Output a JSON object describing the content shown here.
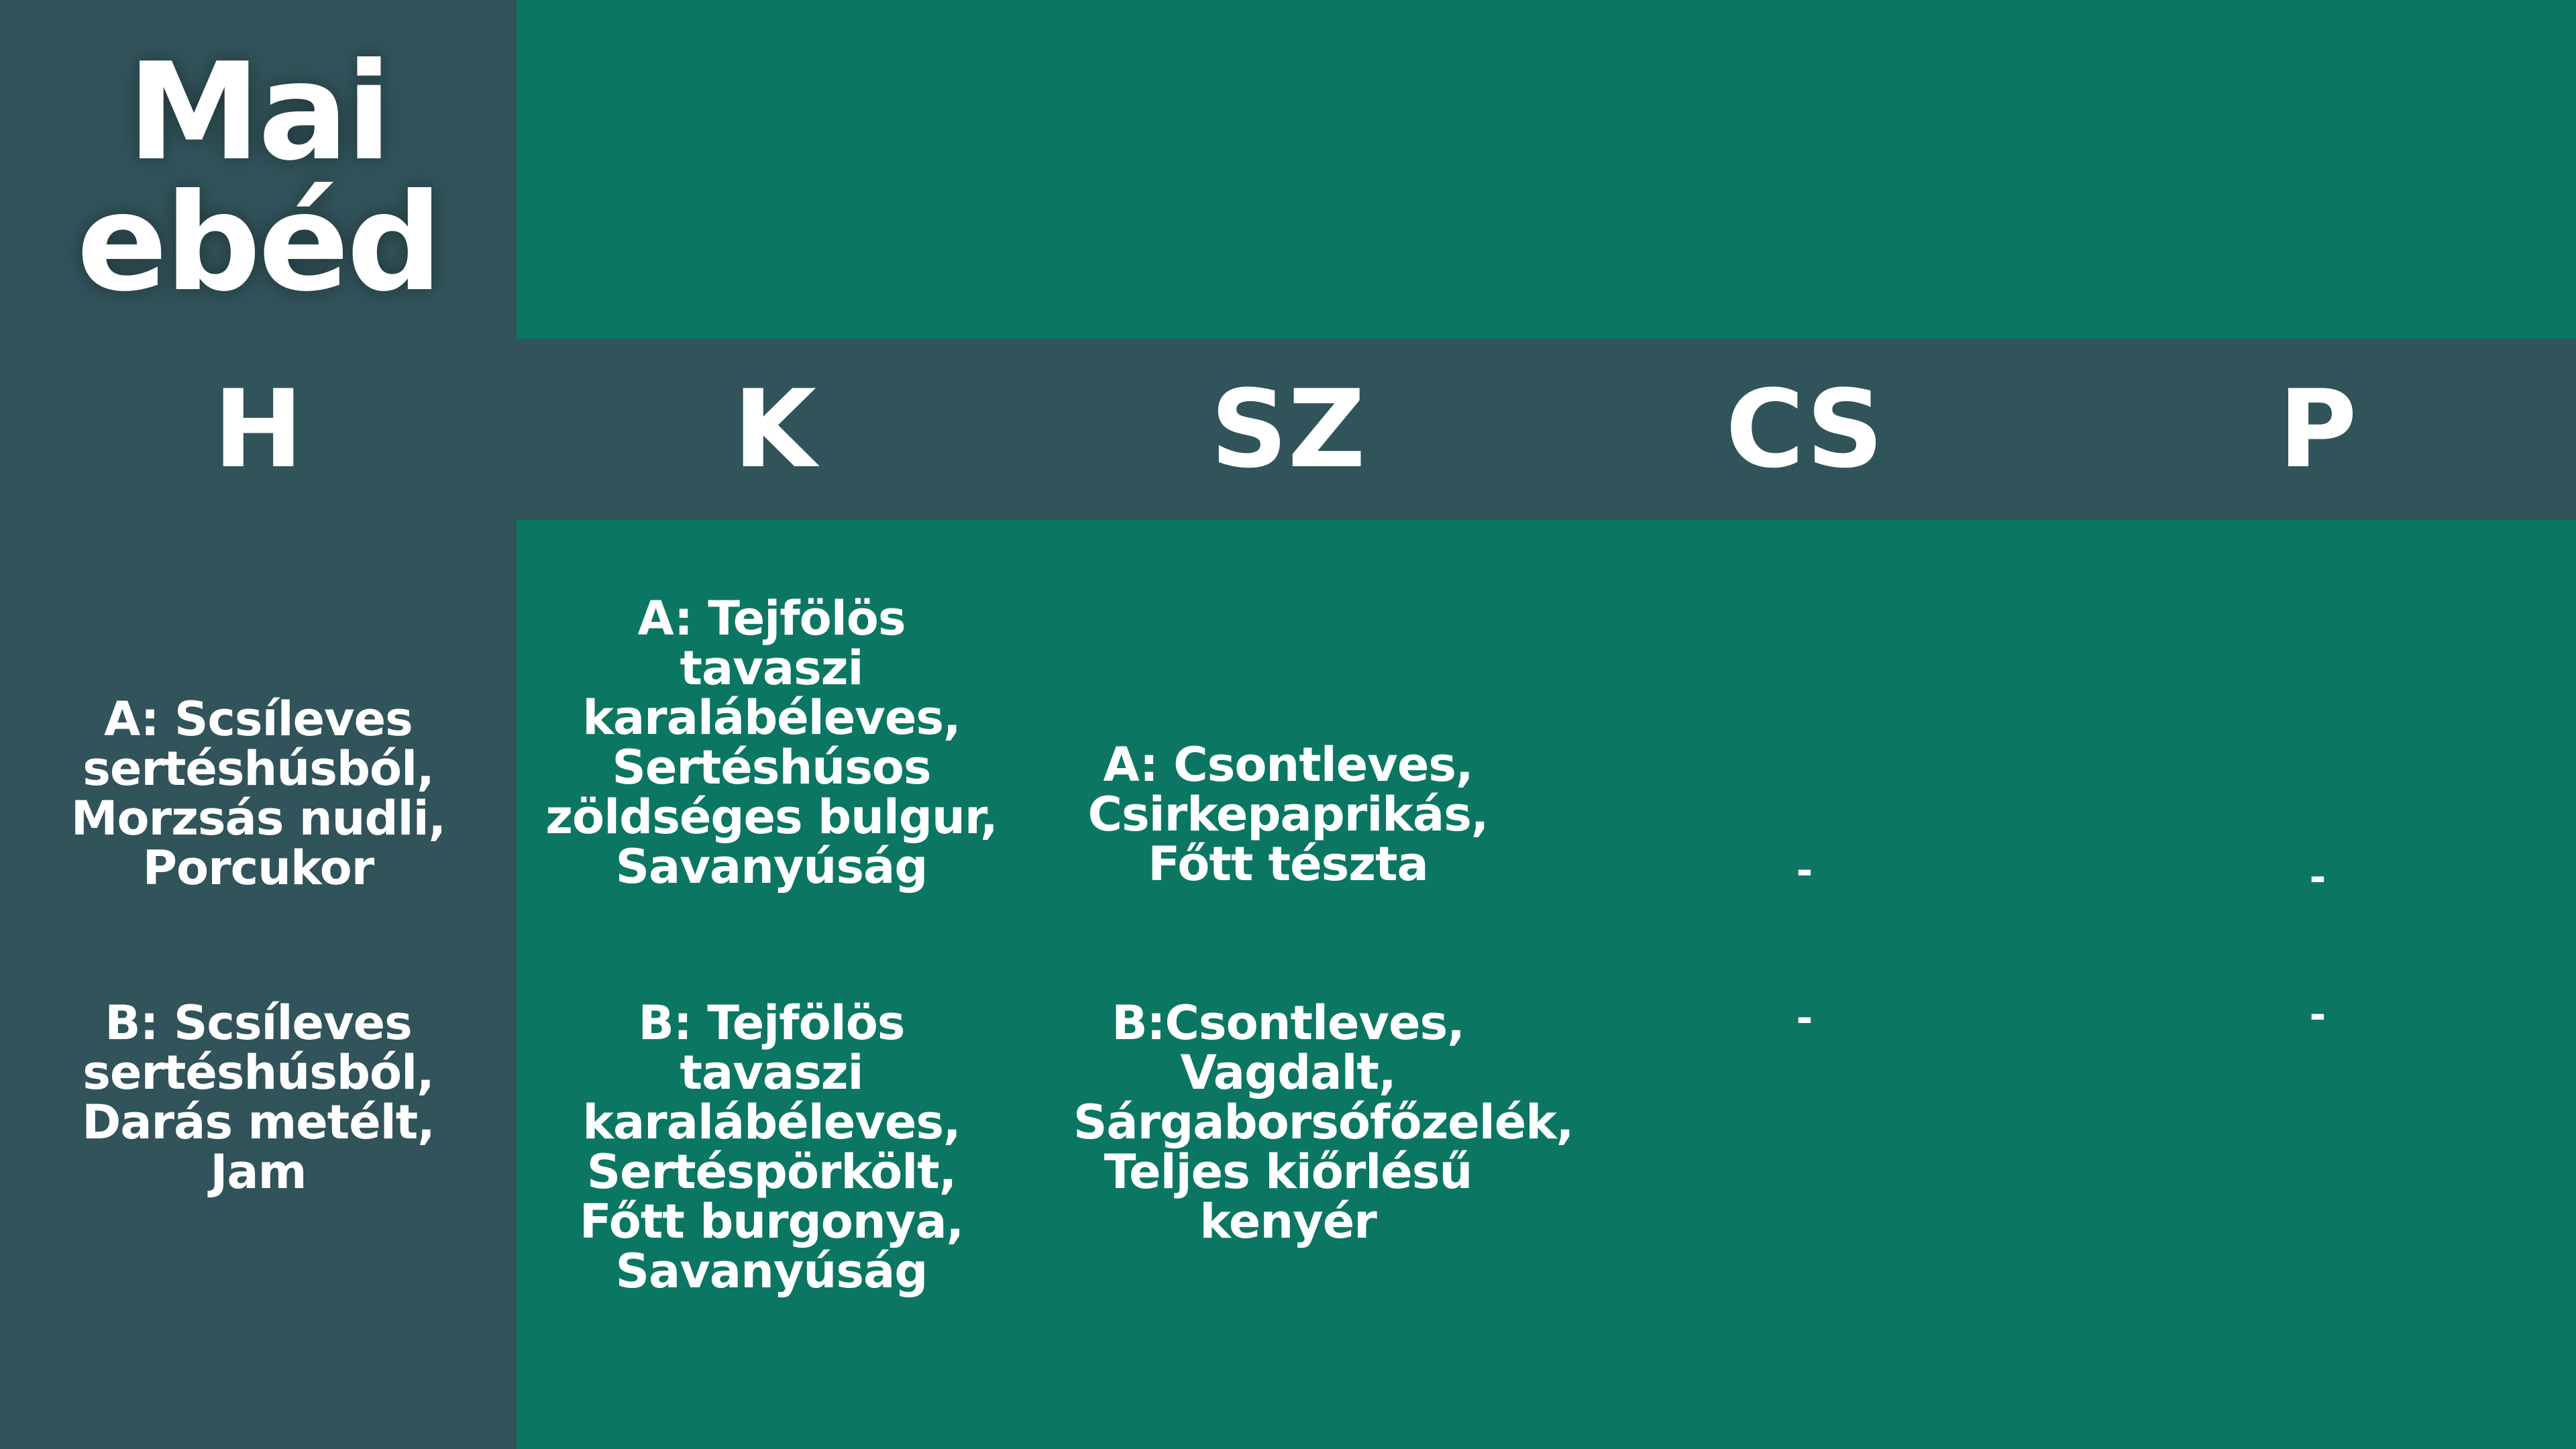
{
  "title": {
    "line1": "Mai",
    "line2": "ebéd"
  },
  "days": {
    "mon": "H",
    "tue": "K",
    "wed": "SZ",
    "thu": "CS",
    "fri": "P"
  },
  "menu": {
    "mon": {
      "a": "A: Scsíleves sertéshúsból, Morzsás nudli, Porcukor",
      "b": "B: Scsíleves sertéshúsból, Darás metélt, Jam"
    },
    "tue": {
      "a": "A: Tejfölös tavaszi karalábéleves, Sertéshúsos zöldséges bulgur, Savanyúság",
      "b": "B: Tejfölös tavaszi karalábéleves, Sertéspörkölt, Főtt burgonya, Savanyúság"
    },
    "wed": {
      "a": "A: Csontleves, Csirkepaprikás, Főtt tészta",
      "b": "B:Csontleves, Vagdalt, Sárgaborsófőzelék, Teljes kiőrlésű kenyér"
    },
    "thu": {
      "a": "-",
      "b": "-"
    },
    "fri": {
      "a": "-",
      "b": "-"
    }
  },
  "colors": {
    "panel_dark": "#31535a",
    "panel_green": "#0b7763",
    "text": "#ffffff"
  }
}
